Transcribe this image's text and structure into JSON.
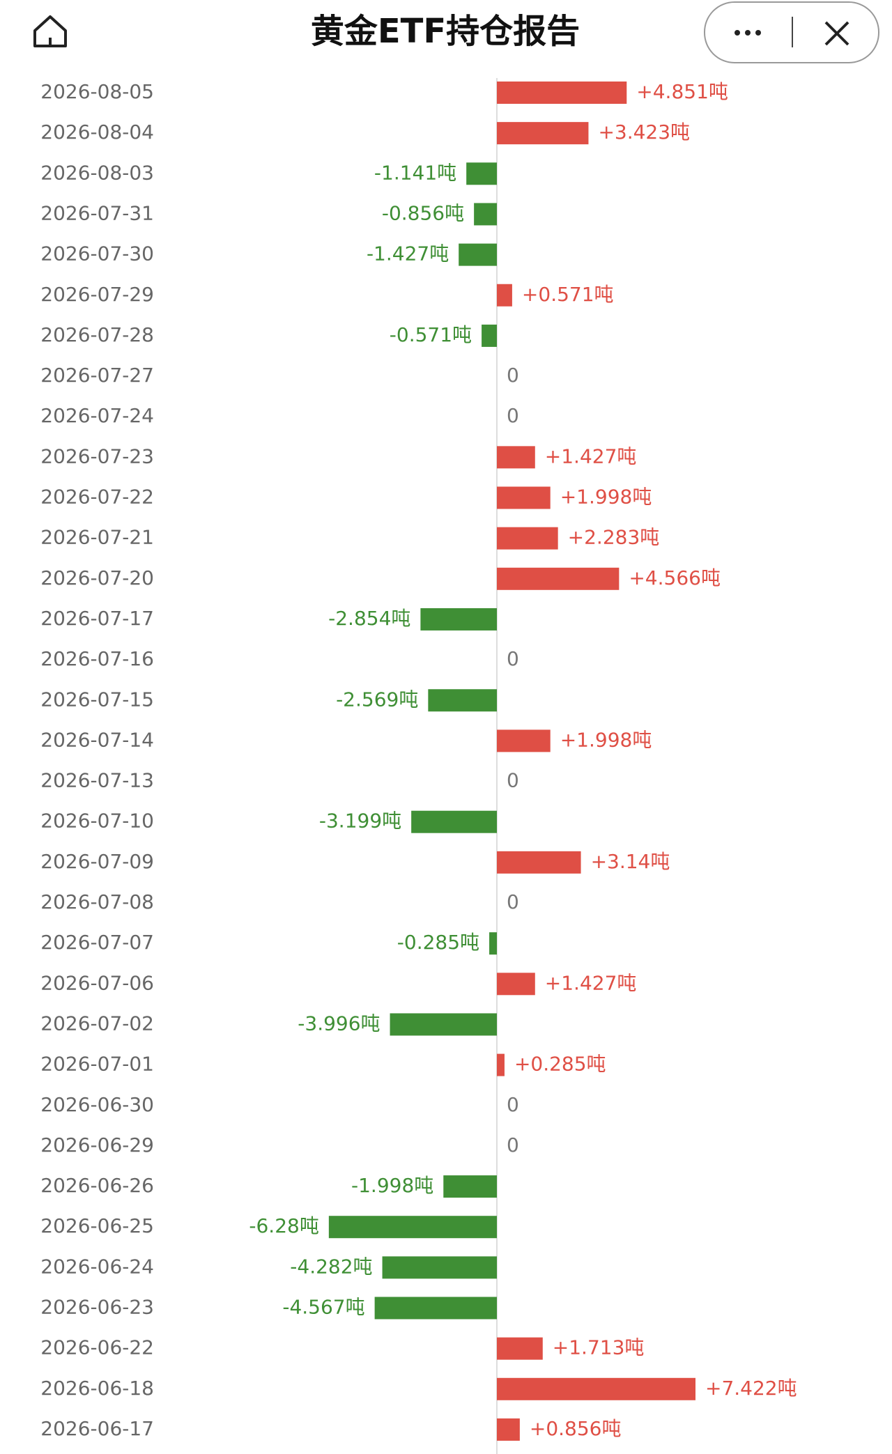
{
  "chart_data": {
    "type": "bar",
    "orientation": "horizontal",
    "title": "黄金ETF持仓报告",
    "categories": [
      "2026-08-05",
      "2026-08-04",
      "2026-08-03",
      "2026-07-31",
      "2026-07-30",
      "2026-07-29",
      "2026-07-28",
      "2026-07-27",
      "2026-07-24",
      "2026-07-23",
      "2026-07-22",
      "2026-07-21",
      "2026-07-20",
      "2026-07-17",
      "2026-07-16",
      "2026-07-15",
      "2026-07-14",
      "2026-07-13",
      "2026-07-10",
      "2026-07-09",
      "2026-07-08",
      "2026-07-07",
      "2026-07-06",
      "2026-07-02",
      "2026-07-01",
      "2026-06-30",
      "2026-06-29",
      "2026-06-26",
      "2026-06-25",
      "2026-06-24",
      "2026-06-23",
      "2026-06-22",
      "2026-06-18",
      "2026-06-17"
    ],
    "values": [
      4.851,
      3.423,
      -1.141,
      -0.856,
      -1.427,
      0.571,
      -0.571,
      0,
      0,
      1.427,
      1.998,
      2.283,
      4.566,
      -2.854,
      0,
      -2.569,
      1.998,
      0,
      -3.199,
      3.14,
      0,
      -0.285,
      1.427,
      -3.996,
      0.285,
      0,
      0,
      -1.998,
      -6.28,
      -4.282,
      -4.567,
      1.713,
      7.422,
      0.856
    ],
    "value_labels": [
      "+4.851吨",
      "+3.423吨",
      "-1.141吨",
      "-0.856吨",
      "-1.427吨",
      "+0.571吨",
      "-0.571吨",
      "0",
      "0",
      "+1.427吨",
      "+1.998吨",
      "+2.283吨",
      "+4.566吨",
      "-2.854吨",
      "0",
      "-2.569吨",
      "+1.998吨",
      "0",
      "-3.199吨",
      "+3.14吨",
      "0",
      "-0.285吨",
      "+1.427吨",
      "-3.996吨",
      "+0.285吨",
      "0",
      "0",
      "-1.998吨",
      "-6.28吨",
      "-4.282吨",
      "-4.567吨",
      "+1.713吨",
      "+7.422吨",
      "+0.856吨"
    ],
    "positive_color": "#df4f45",
    "negative_color": "#3f8f35"
  }
}
